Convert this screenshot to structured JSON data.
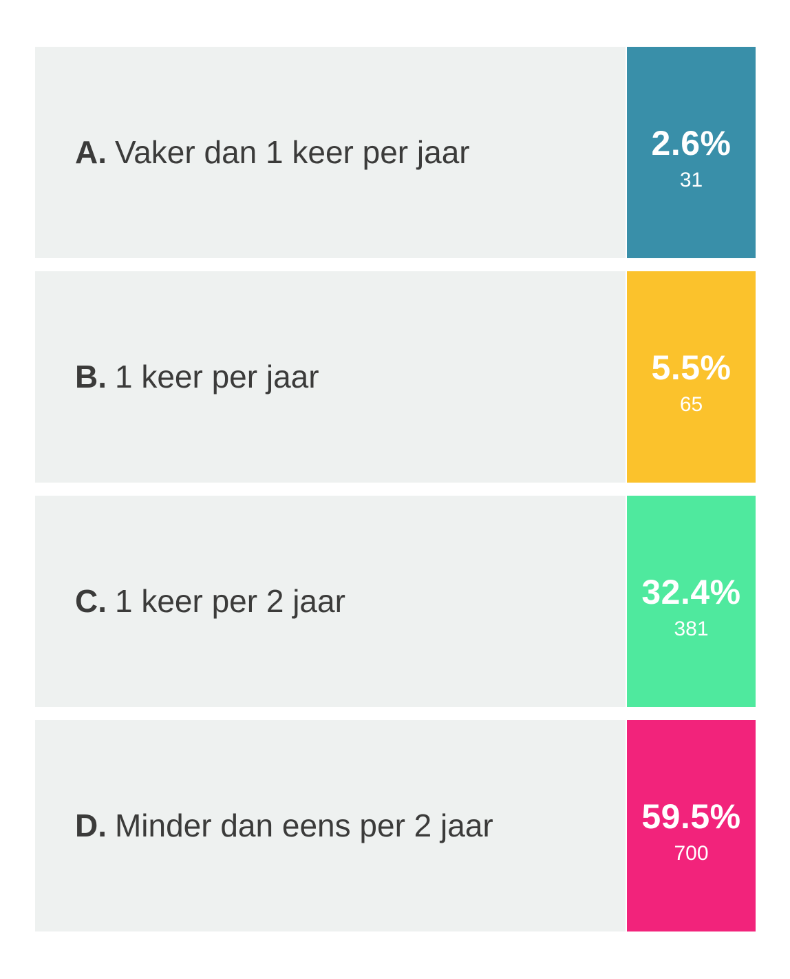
{
  "chart_data": {
    "type": "bar",
    "title": "",
    "categories": [
      "A. Vaker dan 1 keer per jaar",
      "B. 1 keer per jaar",
      "C. 1 keer per 2 jaar",
      "D. Minder dan eens per 2 jaar"
    ],
    "series": [
      {
        "name": "percentage",
        "values": [
          2.6,
          5.5,
          32.4,
          59.5
        ]
      },
      {
        "name": "respondents",
        "values": [
          31,
          65,
          381,
          700
        ]
      }
    ],
    "xlabel": "",
    "ylabel": "",
    "legend_position": "none",
    "grid": false,
    "layout_hint": "poll-results list; each category row has an equal-width colored value badge on the right"
  },
  "options": [
    {
      "letter": "A.",
      "label": "Vaker dan 1 keer per jaar",
      "percent": "2.6%",
      "count": "31",
      "color": "#398fa9"
    },
    {
      "letter": "B.",
      "label": "1 keer per jaar",
      "percent": "5.5%",
      "count": "65",
      "color": "#fbc22c"
    },
    {
      "letter": "C.",
      "label": "1 keer per 2 jaar",
      "percent": "32.4%",
      "count": "381",
      "color": "#4fe99e"
    },
    {
      "letter": "D.",
      "label": "Minder dan eens per 2 jaar",
      "percent": "59.5%",
      "count": "700",
      "color": "#f2237b"
    }
  ],
  "colors": {
    "row_background": "#eef1f0",
    "page_background": "#ffffff",
    "label_text": "#3b3b3a",
    "badge_text": "#ffffff",
    "badge_teal": "#398fa9",
    "badge_yellow": "#fbc22c",
    "badge_green": "#4fe99e",
    "badge_pink": "#f2237b"
  }
}
